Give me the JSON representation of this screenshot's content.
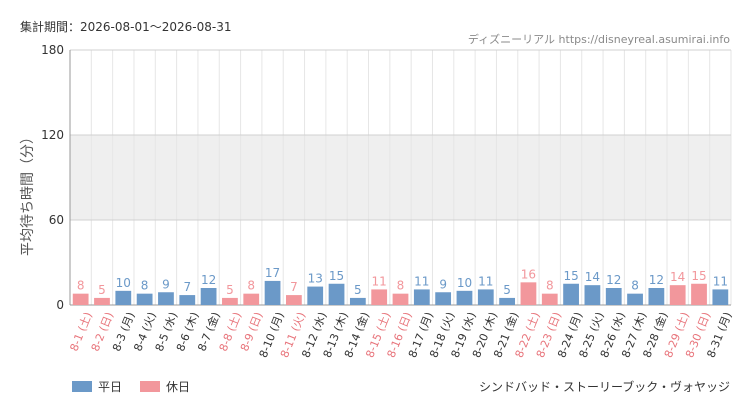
{
  "header": {
    "period": "集計期間：2026-08-01～2026-08-31",
    "source": "ディズニーリアル https://disneyreal.asumirai.info"
  },
  "footer": {
    "attraction": "シンドバッド・ストーリーブック・ヴォヤッジ"
  },
  "legend": {
    "weekday": "平日",
    "holiday": "休日"
  },
  "chart_data": {
    "type": "bar",
    "ylabel": "平均待ち時間（分）",
    "ylim": [
      0,
      180
    ],
    "yticks": [
      0,
      60,
      120,
      180
    ],
    "shaded_band": [
      60,
      120
    ],
    "grid": true,
    "legend_position": "bottom-left",
    "colors": {
      "weekday": "#6b99c8",
      "holiday": "#f2979c",
      "shade": "#efefef"
    },
    "categories": [
      "8-1 (土)",
      "8-2 (日)",
      "8-3 (月)",
      "8-4 (火)",
      "8-5 (水)",
      "8-6 (木)",
      "8-7 (金)",
      "8-8 (土)",
      "8-9 (日)",
      "8-10 (月)",
      "8-11 (火)",
      "8-12 (水)",
      "8-13 (木)",
      "8-14 (金)",
      "8-15 (土)",
      "8-16 (日)",
      "8-17 (月)",
      "8-18 (火)",
      "8-19 (水)",
      "8-20 (木)",
      "8-21 (金)",
      "8-22 (土)",
      "8-23 (日)",
      "8-24 (月)",
      "8-25 (火)",
      "8-26 (水)",
      "8-27 (木)",
      "8-28 (金)",
      "8-29 (土)",
      "8-30 (日)",
      "8-31 (月)"
    ],
    "values": [
      8,
      5,
      10,
      8,
      9,
      7,
      12,
      5,
      8,
      17,
      7,
      13,
      15,
      5,
      11,
      8,
      11,
      9,
      10,
      11,
      5,
      16,
      8,
      15,
      14,
      12,
      8,
      12,
      14,
      15,
      11
    ],
    "day_type": [
      "holiday",
      "holiday",
      "weekday",
      "weekday",
      "weekday",
      "weekday",
      "weekday",
      "holiday",
      "holiday",
      "weekday",
      "holiday",
      "weekday",
      "weekday",
      "weekday",
      "holiday",
      "holiday",
      "weekday",
      "weekday",
      "weekday",
      "weekday",
      "weekday",
      "holiday",
      "holiday",
      "weekday",
      "weekday",
      "weekday",
      "weekday",
      "weekday",
      "holiday",
      "holiday",
      "weekday"
    ]
  }
}
